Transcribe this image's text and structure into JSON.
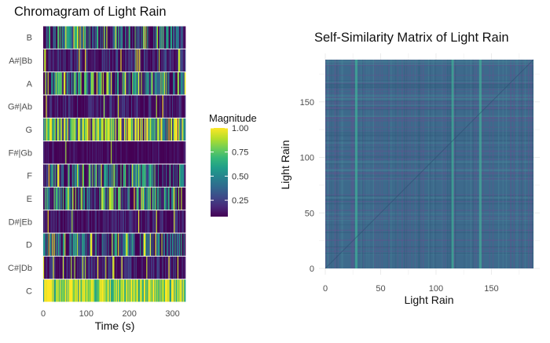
{
  "chart_data": [
    {
      "type": "heatmap",
      "title": "Chromagram of Light Rain",
      "xlabel": "Time (s)",
      "ylabel": "",
      "xlim": [
        0,
        330
      ],
      "x_ticks": [
        0,
        100,
        200,
        300
      ],
      "y_categories": [
        "C",
        "C#|Db",
        "D",
        "D#|Eb",
        "E",
        "F",
        "F#|Gb",
        "G",
        "G#|Ab",
        "A",
        "A#|Bb",
        "B"
      ],
      "frame_count": 160,
      "row_profiles": {
        "C": {
          "mean": 0.88,
          "spread": 0.35
        },
        "C#|Db": {
          "mean": 0.14,
          "spread": 0.18
        },
        "D": {
          "mean": 0.24,
          "spread": 0.45
        },
        "D#|Eb": {
          "mean": 0.12,
          "spread": 0.15
        },
        "E": {
          "mean": 0.34,
          "spread": 0.5
        },
        "F": {
          "mean": 0.26,
          "spread": 0.55
        },
        "F#|Gb": {
          "mean": 0.09,
          "spread": 0.1
        },
        "G": {
          "mean": 0.66,
          "spread": 0.6
        },
        "G#|Ab": {
          "mean": 0.12,
          "spread": 0.16
        },
        "A": {
          "mean": 0.3,
          "spread": 0.55
        },
        "A#|Bb": {
          "mean": 0.14,
          "spread": 0.2
        },
        "B": {
          "mean": 0.26,
          "spread": 0.5
        }
      },
      "legend": {
        "title": "Magnitude",
        "placement": "right",
        "range": [
          0.08,
          1.0
        ],
        "ticks": [
          0.25,
          0.5,
          0.75,
          1.0
        ],
        "tick_labels": [
          "0.25",
          "0.50",
          "0.75",
          "1.00"
        ]
      },
      "colorscale": [
        "#440154",
        "#482878",
        "#3e4989",
        "#31688e",
        "#26828e",
        "#1f9e89",
        "#35b779",
        "#6ece58",
        "#b5de2b",
        "#fde725"
      ]
    },
    {
      "type": "heatmap",
      "title": "Self-Similarity Matrix of Light Rain",
      "xlabel": "Light Rain",
      "ylabel": "Light Rain",
      "xlim": [
        0,
        188
      ],
      "ylim": [
        0,
        188
      ],
      "x_ticks": [
        0,
        50,
        100,
        150
      ],
      "y_ticks": [
        0,
        50,
        100,
        150
      ],
      "base_color": "#3d6a8c",
      "grid": true,
      "highlight_columns": [
        28,
        115,
        140
      ]
    }
  ]
}
